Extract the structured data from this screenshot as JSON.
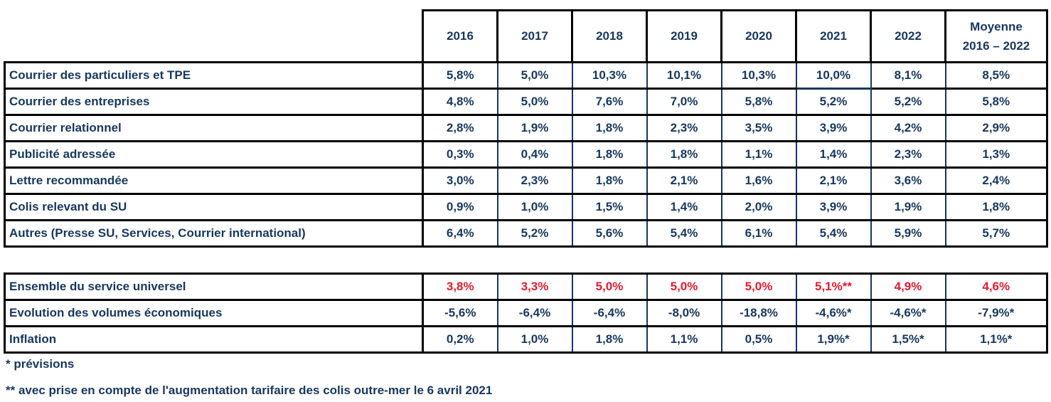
{
  "colors": {
    "text_navy": "#17375D",
    "highlight_red": "#E41A2C",
    "grid_black": "#000000"
  },
  "table_main": {
    "years": [
      "2016",
      "2017",
      "2018",
      "2019",
      "2020",
      "2021",
      "2022"
    ],
    "moyenne_header": {
      "line1": "Moyenne",
      "line2": "2016 – 2022"
    },
    "rows": [
      {
        "label": "Courrier des particuliers et TPE",
        "values": [
          "5,8%",
          "5,0%",
          "10,3%",
          "10,1%",
          "10,3%",
          "10,0%",
          "8,1%",
          "8,5%"
        ]
      },
      {
        "label": "Courrier des entreprises",
        "values": [
          "4,8%",
          "5,0%",
          "7,6%",
          "7,0%",
          "5,8%",
          "5,2%",
          "5,2%",
          "5,8%"
        ]
      },
      {
        "label": "Courrier relationnel",
        "values": [
          "2,8%",
          "1,9%",
          "1,8%",
          "2,3%",
          "3,5%",
          "3,9%",
          "4,2%",
          "2,9%"
        ]
      },
      {
        "label": "Publicité adressée",
        "values": [
          "0,3%",
          "0,4%",
          "1,8%",
          "1,8%",
          "1,1%",
          "1,4%",
          "2,3%",
          "1,3%"
        ]
      },
      {
        "label": "Lettre recommandée",
        "values": [
          "3,0%",
          "2,3%",
          "1,8%",
          "2,1%",
          "1,6%",
          "2,1%",
          "3,6%",
          "2,4%"
        ]
      },
      {
        "label": "Colis relevant du SU",
        "values": [
          "0,9%",
          "1,0%",
          "1,5%",
          "1,4%",
          "2,0%",
          "3,9%",
          "1,9%",
          "1,8%"
        ]
      },
      {
        "label": "Autres (Presse SU, Services, Courrier international)",
        "values": [
          "6,4%",
          "5,2%",
          "5,6%",
          "5,4%",
          "6,1%",
          "5,4%",
          "5,9%",
          "5,7%"
        ]
      }
    ]
  },
  "table_summary": {
    "rows": [
      {
        "label": "Ensemble du service universel",
        "highlight": "red",
        "values": [
          "3,8%",
          "3,3%",
          "5,0%",
          "5,0%",
          "5,0%",
          "5,1%**",
          "4,9%",
          "4,6%"
        ]
      },
      {
        "label": "Evolution des volumes économiques",
        "highlight": "none",
        "values": [
          "-5,6%",
          "-6,4%",
          "-6,4%",
          "-8,0%",
          "-18,8%",
          "-4,6%*",
          "-4,6%*",
          "-7,9%*"
        ]
      },
      {
        "label": "Inflation",
        "highlight": "none",
        "values": [
          "0,2%",
          "1,0%",
          "1,8%",
          "1,1%",
          "0,5%",
          "1,9%*",
          "1,5%*",
          "1,1%*"
        ]
      }
    ]
  },
  "footnotes": {
    "line1": "* prévisions",
    "line2": "** avec prise en compte de l'augmentation tarifaire des colis outre-mer le 6 avril 2021"
  }
}
